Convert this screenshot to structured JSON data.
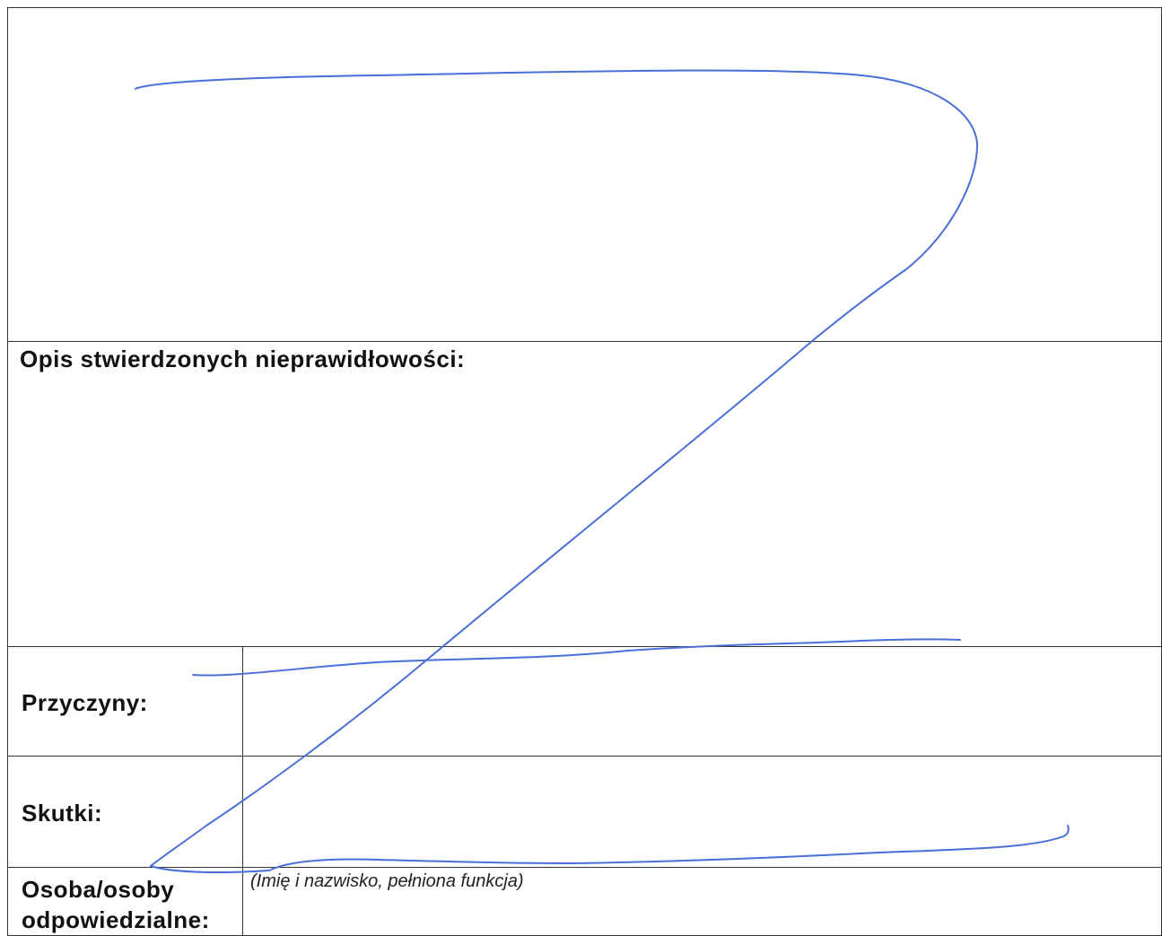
{
  "form": {
    "description_label": "Opis stwierdzonych nieprawidłowości:",
    "causes_label": "Przyczyny:",
    "effects_label": "Skutki:",
    "responsible_label_line1": "Osoba/osoby",
    "responsible_label_line2": "odpowiedzialne:",
    "responsible_hint": "(Imię i nazwisko, pełniona funkcja)"
  },
  "colors": {
    "ink_blue": "#4a6fd8",
    "border": "#333333"
  },
  "annotations": {
    "strike_mark": "handwritten Z strike-through"
  }
}
